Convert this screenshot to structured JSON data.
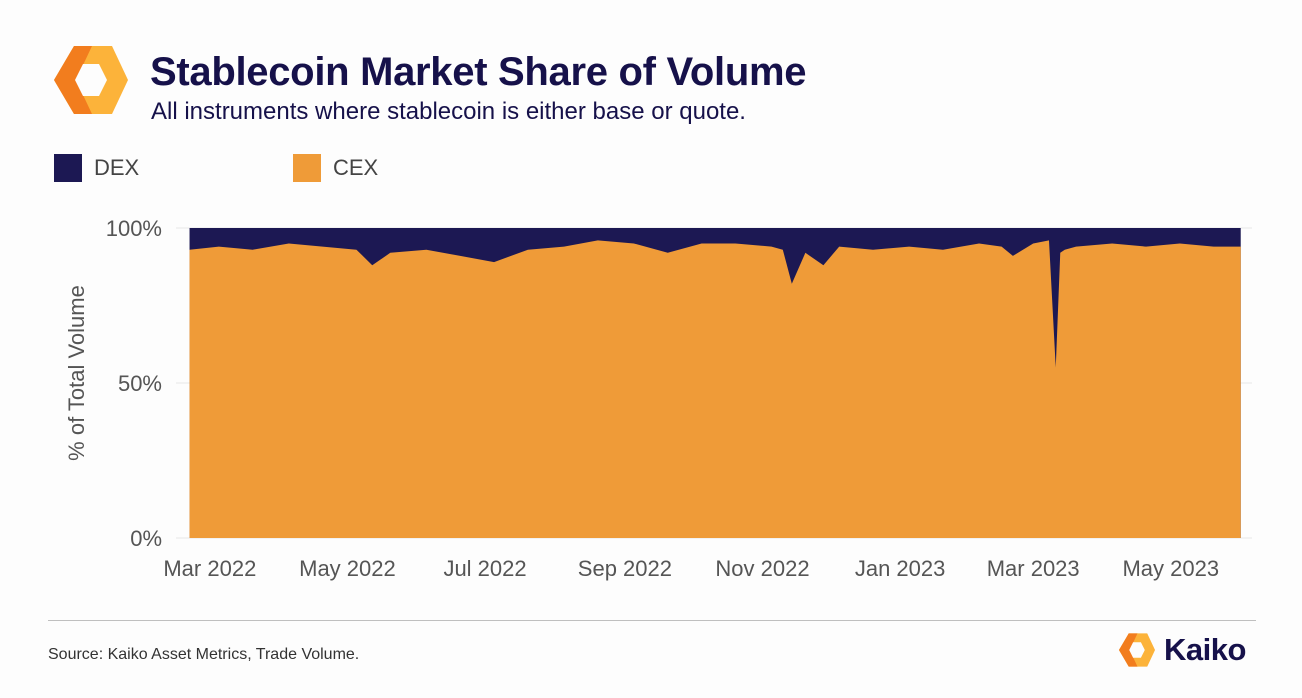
{
  "header": {
    "title": "Stablecoin Market Share of Volume",
    "subtitle": "All instruments where stablecoin is either base or quote."
  },
  "footer": {
    "source": "Source: Kaiko Asset Metrics, Trade Volume.",
    "brand": "Kaiko"
  },
  "colors": {
    "dex": "#1c1853",
    "cex": "#ef9b38",
    "title": "#16114a",
    "logo_light": "#fcb33a",
    "logo_dark": "#f27d1e"
  },
  "chart_data": {
    "type": "area",
    "stacked": true,
    "percent": true,
    "ylabel": "% of Total Volume",
    "ylim": [
      0,
      100
    ],
    "yticks": [
      {
        "value": 0,
        "label": "0%"
      },
      {
        "value": 50,
        "label": "50%"
      },
      {
        "value": 100,
        "label": "100%"
      }
    ],
    "xlim": [
      "2022-02-14",
      "2023-06-06"
    ],
    "xticks": [
      {
        "date": "2022-03-01",
        "label": "Mar 2022"
      },
      {
        "date": "2022-05-01",
        "label": "May 2022"
      },
      {
        "date": "2022-07-01",
        "label": "Jul 2022"
      },
      {
        "date": "2022-09-01",
        "label": "Sep 2022"
      },
      {
        "date": "2022-11-01",
        "label": "Nov 2022"
      },
      {
        "date": "2023-01-01",
        "label": "Jan 2023"
      },
      {
        "date": "2023-03-01",
        "label": "Mar 2023"
      },
      {
        "date": "2023-05-01",
        "label": "May 2023"
      }
    ],
    "legend": {
      "position": "top-left",
      "entries": [
        "DEX",
        "CEX"
      ]
    },
    "series": [
      {
        "name": "DEX",
        "color": "#1c1853",
        "role": "top"
      },
      {
        "name": "CEX",
        "color": "#ef9b38",
        "role": "bottom"
      }
    ],
    "cex_share": {
      "dates": [
        "2022-02-20",
        "2022-03-05",
        "2022-03-20",
        "2022-04-05",
        "2022-04-20",
        "2022-05-05",
        "2022-05-12",
        "2022-05-20",
        "2022-06-05",
        "2022-06-20",
        "2022-07-05",
        "2022-07-20",
        "2022-08-05",
        "2022-08-20",
        "2022-09-05",
        "2022-09-20",
        "2022-10-05",
        "2022-10-20",
        "2022-11-05",
        "2022-11-10",
        "2022-11-14",
        "2022-11-20",
        "2022-11-28",
        "2022-12-05",
        "2022-12-20",
        "2023-01-05",
        "2023-01-20",
        "2023-02-05",
        "2023-02-15",
        "2023-02-20",
        "2023-03-01",
        "2023-03-08",
        "2023-03-11",
        "2023-03-13",
        "2023-03-15",
        "2023-03-20",
        "2023-04-05",
        "2023-04-20",
        "2023-05-05",
        "2023-05-20",
        "2023-06-01"
      ],
      "values": [
        93,
        94,
        93,
        95,
        94,
        93,
        88,
        92,
        93,
        91,
        89,
        93,
        94,
        96,
        95,
        92,
        95,
        95,
        94,
        93,
        82,
        92,
        88,
        94,
        93,
        94,
        93,
        95,
        94,
        91,
        95,
        96,
        55,
        92,
        93,
        94,
        95,
        94,
        95,
        94,
        94
      ]
    }
  }
}
